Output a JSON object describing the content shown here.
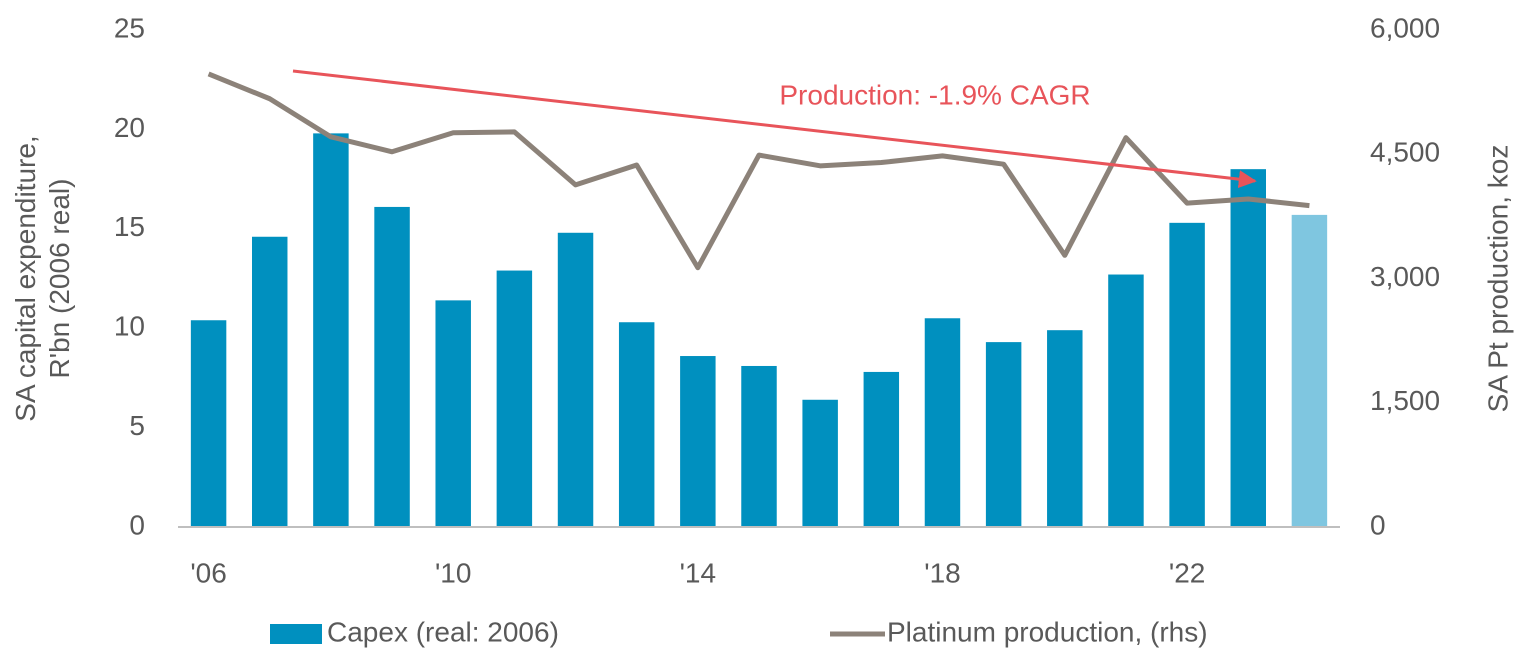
{
  "chart_data": {
    "type": "bar",
    "ylabel": [
      "SA capital expenditure,",
      "R'bn (2006 real)"
    ],
    "y2label": "SA Pt production, koz",
    "annotation": "Production: -1.9% CAGR",
    "annotation_color": "#e8545a",
    "categories": [
      "'06",
      null,
      null,
      null,
      "'10",
      null,
      null,
      null,
      "'14",
      null,
      null,
      null,
      "'18",
      null,
      null,
      null,
      "'22",
      null,
      null
    ],
    "series": [
      {
        "name": "Capex (real: 2006)",
        "type": "bar",
        "color": "#0090bf",
        "colors": [
          "#0090bf",
          "#0090bf",
          "#0090bf",
          "#0090bf",
          "#0090bf",
          "#0090bf",
          "#0090bf",
          "#0090bf",
          "#0090bf",
          "#0090bf",
          "#0090bf",
          "#0090bf",
          "#0090bf",
          "#0090bf",
          "#0090bf",
          "#0090bf",
          "#0090bf",
          "#0090bf",
          "#7fc6e0"
        ],
        "values": [
          10.4,
          14.6,
          19.8,
          16.1,
          11.4,
          12.9,
          14.8,
          10.3,
          8.6,
          8.1,
          6.4,
          7.8,
          10.5,
          9.3,
          9.9,
          12.7,
          15.3,
          18.0,
          15.7
        ]
      },
      {
        "name": "Platinum production, (rhs)",
        "type": "line",
        "axis": "y2",
        "color": "#8c8279",
        "values": [
          5470,
          5170,
          4710,
          4530,
          4760,
          4770,
          4130,
          4370,
          3130,
          4490,
          4360,
          4400,
          4480,
          4380,
          3280,
          4700,
          3910,
          3960,
          3880
        ]
      }
    ],
    "ylim": [
      0,
      25
    ],
    "yticks": [
      0,
      5,
      10,
      15,
      20,
      25
    ],
    "y2lim": [
      0,
      6000
    ],
    "y2ticks": [
      0,
      {
        "value": 1500,
        "label": "1,500"
      },
      {
        "value": 3000,
        "label": "3,000"
      },
      {
        "value": 4500,
        "label": "4,500"
      },
      {
        "value": 6000,
        "label": "6,000"
      }
    ],
    "legend": "bottom"
  }
}
